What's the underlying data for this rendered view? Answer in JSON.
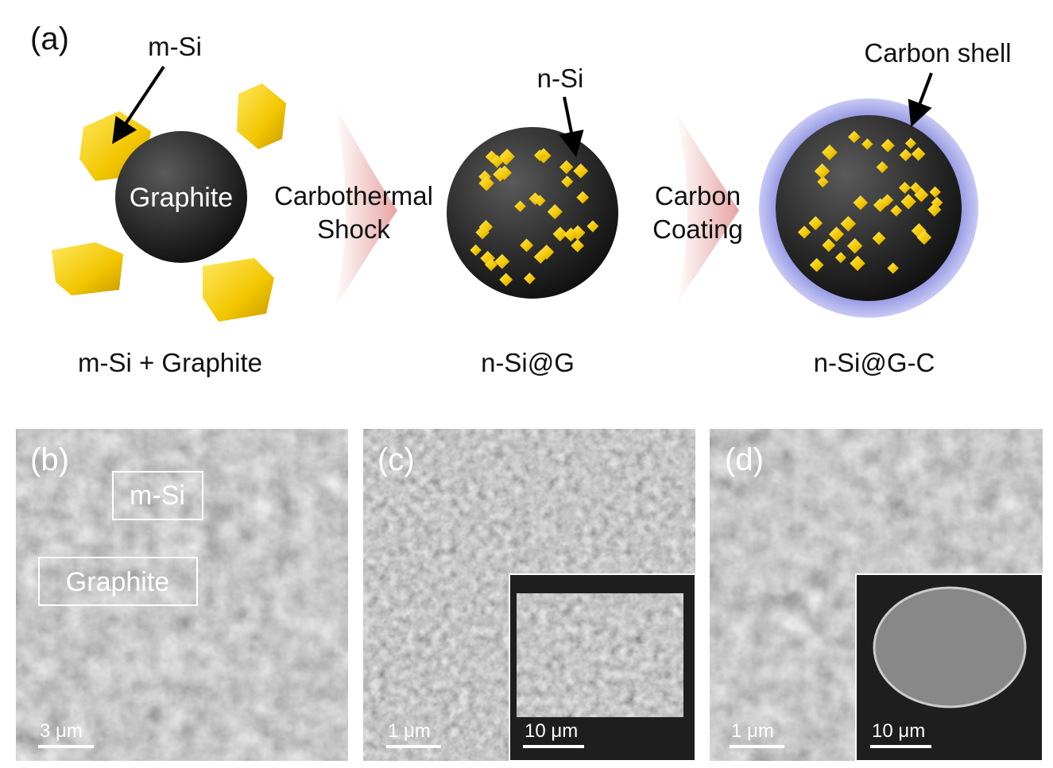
{
  "schematic": {
    "label": "(a)",
    "m_si_label": "m-Si",
    "graphite_label": "Graphite",
    "n_si_label": "n-Si",
    "shell_label": "Carbon shell",
    "steps": [
      {
        "lines": [
          "Carbothermal",
          "Shock"
        ]
      },
      {
        "lines": [
          "Carbon",
          "Coating"
        ]
      }
    ],
    "captions": [
      "m-Si + Graphite",
      "n-Si@G",
      "n-Si@G-C"
    ]
  },
  "panels": [
    {
      "label": "(b)",
      "boxes": [
        "m-Si",
        "Graphite"
      ],
      "scale_bar": "3 μm"
    },
    {
      "label": "(c)",
      "scale_bar": "1 μm",
      "inset_scale_bar": "10 μm"
    },
    {
      "label": "(d)",
      "scale_bar": "1 μm",
      "inset_scale_bar": "10 μm"
    }
  ]
}
